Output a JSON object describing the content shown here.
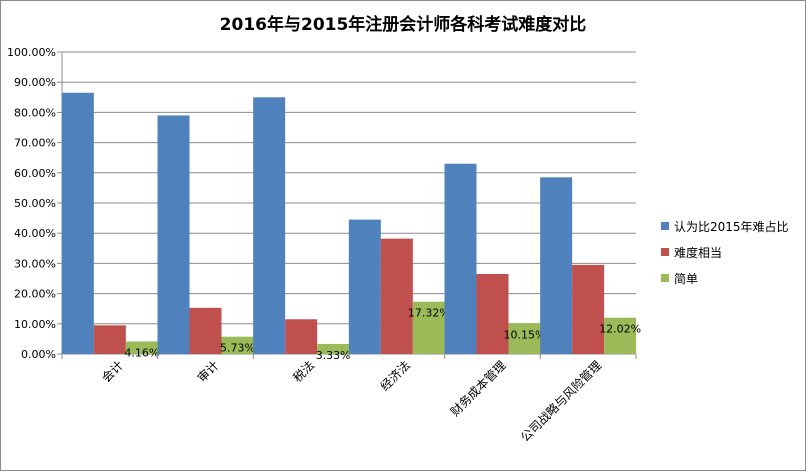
{
  "chart_data": {
    "type": "bar",
    "title": "2016年与2015年注册会计师各科考试难度对比",
    "categories": [
      "会计",
      "审计",
      "税法",
      "经济法",
      "财务成本管理",
      "公司战略与风险管理"
    ],
    "series": [
      {
        "name": "认为比2015年难占比",
        "color": "#4f81bd",
        "values": [
          86.5,
          79.0,
          85.0,
          44.5,
          63.0,
          58.5
        ]
      },
      {
        "name": "难度相当",
        "color": "#c0504d",
        "values": [
          9.5,
          15.3,
          11.5,
          38.2,
          26.5,
          29.5
        ]
      },
      {
        "name": "简单",
        "color": "#9bbb59",
        "values": [
          4.16,
          5.73,
          3.33,
          17.32,
          10.15,
          12.02
        ],
        "data_labels": [
          "4.16%",
          "5.73%",
          "3.33%",
          "17.32%",
          "10.15%",
          "12.02%"
        ]
      }
    ],
    "ylim": [
      0,
      100
    ],
    "yticks": [
      "0.00%",
      "10.00%",
      "20.00%",
      "30.00%",
      "40.00%",
      "50.00%",
      "60.00%",
      "70.00%",
      "80.00%",
      "90.00%",
      "100.00%"
    ],
    "grid": true,
    "legend_position": "right"
  }
}
